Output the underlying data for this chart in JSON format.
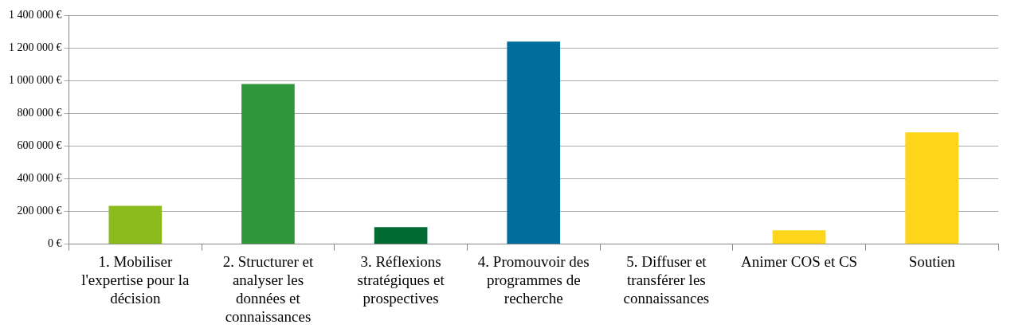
{
  "chart_data": {
    "type": "bar",
    "categories": [
      "1. Mobiliser l'expertise pour la décision",
      "2. Structurer et analyser les données et connaissances",
      "3. Réflexions stratégiques et prospectives",
      "4. Promouvoir des programmes de recherche",
      "5. Diffuser et transférer les connaissances",
      "Animer COS et CS",
      "Soutien"
    ],
    "values": [
      235000,
      980000,
      105000,
      1240000,
      0,
      85000,
      685000
    ],
    "colors": [
      "#8cbb1c",
      "#2f963c",
      "#006a33",
      "#006d9c",
      "#006d9c",
      "#fdd51a",
      "#fdd51a"
    ],
    "ylim": [
      0,
      1400000
    ],
    "yticks": [
      {
        "value": 0,
        "label": "0 €"
      },
      {
        "value": 200000,
        "label": "200 000 €"
      },
      {
        "value": 400000,
        "label": "400 000 €"
      },
      {
        "value": 600000,
        "label": "600 000 €"
      },
      {
        "value": 800000,
        "label": "800 000 €"
      },
      {
        "value": 1000000,
        "label": "1 000 000 €"
      },
      {
        "value": 1200000,
        "label": "1 200 000 €"
      },
      {
        "value": 1400000,
        "label": "1 400 000 €"
      }
    ],
    "grid": "y",
    "legend": false
  }
}
